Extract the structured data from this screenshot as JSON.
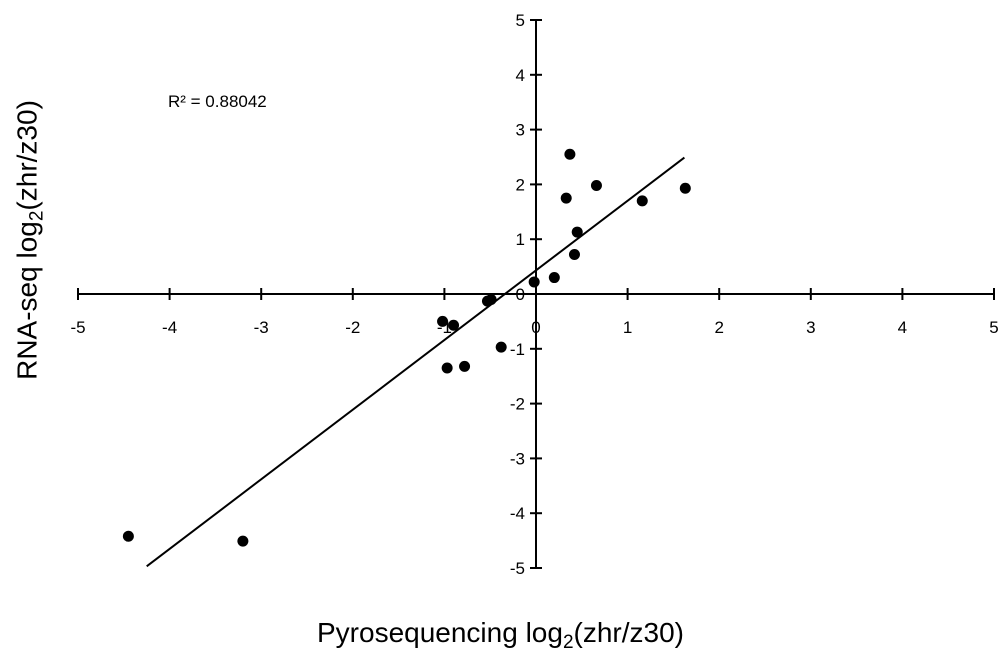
{
  "chart_data": {
    "type": "scatter",
    "xlabel": {
      "prefix": "Pyrosequencing log",
      "sub": "2",
      "suffix": "(zhr/z30)"
    },
    "ylabel": {
      "prefix": "RNA-seq log",
      "sub": "2",
      "suffix": "(zhr/z30)"
    },
    "xlim": [
      -5,
      5
    ],
    "ylim": [
      -5,
      5
    ],
    "xticks": [
      -5,
      -4,
      -3,
      -2,
      -1,
      0,
      1,
      2,
      3,
      4,
      5
    ],
    "yticks": [
      -5,
      -4,
      -3,
      -2,
      -1,
      0,
      1,
      2,
      3,
      4,
      5
    ],
    "annotation": "R² = 0.88042",
    "trendline": {
      "x": [
        -4.25,
        1.62
      ],
      "y": [
        -4.97,
        2.49
      ]
    },
    "points": [
      {
        "x": -4.45,
        "y": -4.42
      },
      {
        "x": -3.2,
        "y": -4.51
      },
      {
        "x": -1.02,
        "y": -0.5
      },
      {
        "x": -0.97,
        "y": -1.35
      },
      {
        "x": -0.9,
        "y": -0.57
      },
      {
        "x": -0.78,
        "y": -1.32
      },
      {
        "x": -0.53,
        "y": -0.13
      },
      {
        "x": -0.49,
        "y": -0.1
      },
      {
        "x": -0.38,
        "y": -0.97
      },
      {
        "x": -0.02,
        "y": 0.22
      },
      {
        "x": 0.2,
        "y": 0.3
      },
      {
        "x": 0.33,
        "y": 1.75
      },
      {
        "x": 0.37,
        "y": 2.55
      },
      {
        "x": 0.42,
        "y": 0.72
      },
      {
        "x": 0.45,
        "y": 1.13
      },
      {
        "x": 0.66,
        "y": 1.98
      },
      {
        "x": 1.16,
        "y": 1.7
      },
      {
        "x": 1.63,
        "y": 1.93
      }
    ],
    "grid": false,
    "legend": "none"
  }
}
